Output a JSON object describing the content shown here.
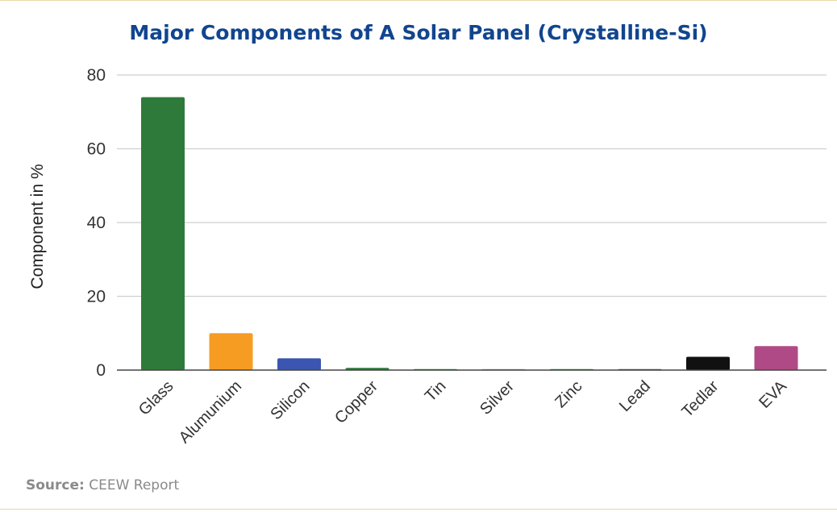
{
  "chart_data": {
    "type": "bar",
    "title": "Major Components of A Solar Panel (Crystalline-Si)",
    "ylabel": "Component in %",
    "xlabel": "",
    "ylim": [
      0,
      80
    ],
    "yticks": [
      0,
      20,
      40,
      60,
      80
    ],
    "grid": true,
    "categories": [
      "Glass",
      "Alumunium",
      "Silicon",
      "Copper",
      "Tin",
      "Silver",
      "Zinc",
      "Lead",
      "Tedlar",
      "EVA"
    ],
    "values": [
      74,
      10,
      3.2,
      0.6,
      0.12,
      0.006,
      0.12,
      0.1,
      3.6,
      6.5
    ],
    "colors": [
      "#2e7a3a",
      "#f79c22",
      "#3c55b0",
      "#2e7a3a",
      "#2e7a3a",
      "#9a9a9a",
      "#2e7a3a",
      "#555555",
      "#111111",
      "#b04a86"
    ]
  },
  "source": {
    "label": "Source:",
    "text": "CEEW Report"
  },
  "colors": {
    "title": "#11458e",
    "gridline": "#cfcfcf",
    "axis": "#444444"
  }
}
